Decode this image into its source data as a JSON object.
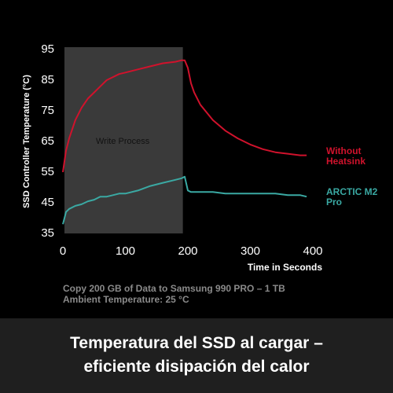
{
  "chart_data": {
    "type": "line",
    "y_label": "SSD Controller Temperature (°C)",
    "x_label": "Time in Seconds",
    "notes": [
      "Copy 200 GB of Data to Samsung 990 PRO  – 1 TB",
      "Ambient Temperature: 25 °C"
    ],
    "caption": [
      "Temperatura del SSD al cargar –",
      "eficiente disipación del calor"
    ],
    "highlight": {
      "label": "Write Process",
      "x": [
        0,
        192
      ]
    },
    "x": [
      0,
      5,
      10,
      20,
      30,
      40,
      50,
      60,
      70,
      80,
      90,
      100,
      120,
      140,
      160,
      180,
      190,
      195,
      200,
      205,
      210,
      220,
      240,
      260,
      280,
      300,
      320,
      340,
      360,
      380,
      390
    ],
    "series": [
      {
        "name": "Without Heatsink",
        "color": "#d0122c",
        "values": [
          55,
          62,
          66,
          72,
          76,
          79,
          81,
          83,
          85,
          86,
          87,
          87.5,
          88.5,
          89.5,
          90.5,
          91,
          91.5,
          91.5,
          89,
          84,
          81,
          77,
          72,
          68.5,
          66,
          64,
          62.5,
          61.5,
          61,
          60.5,
          60.5
        ]
      },
      {
        "name": "ARCTIC M2 Pro",
        "color": "#3aa9a3",
        "values": [
          38,
          42,
          43,
          44,
          44.5,
          45.5,
          46,
          47,
          47,
          47.5,
          48,
          48,
          49,
          50.5,
          51.5,
          52.5,
          53,
          53.5,
          49,
          48.5,
          48.5,
          48.5,
          48.5,
          48,
          48,
          48,
          48,
          48,
          47.5,
          47.5,
          47
        ]
      }
    ],
    "xlim": [
      0,
      400
    ],
    "xticks": [
      0,
      100,
      200,
      300,
      400
    ],
    "ylim": [
      35,
      95
    ],
    "yticks": [
      35,
      45,
      55,
      65,
      75,
      85,
      95
    ]
  }
}
